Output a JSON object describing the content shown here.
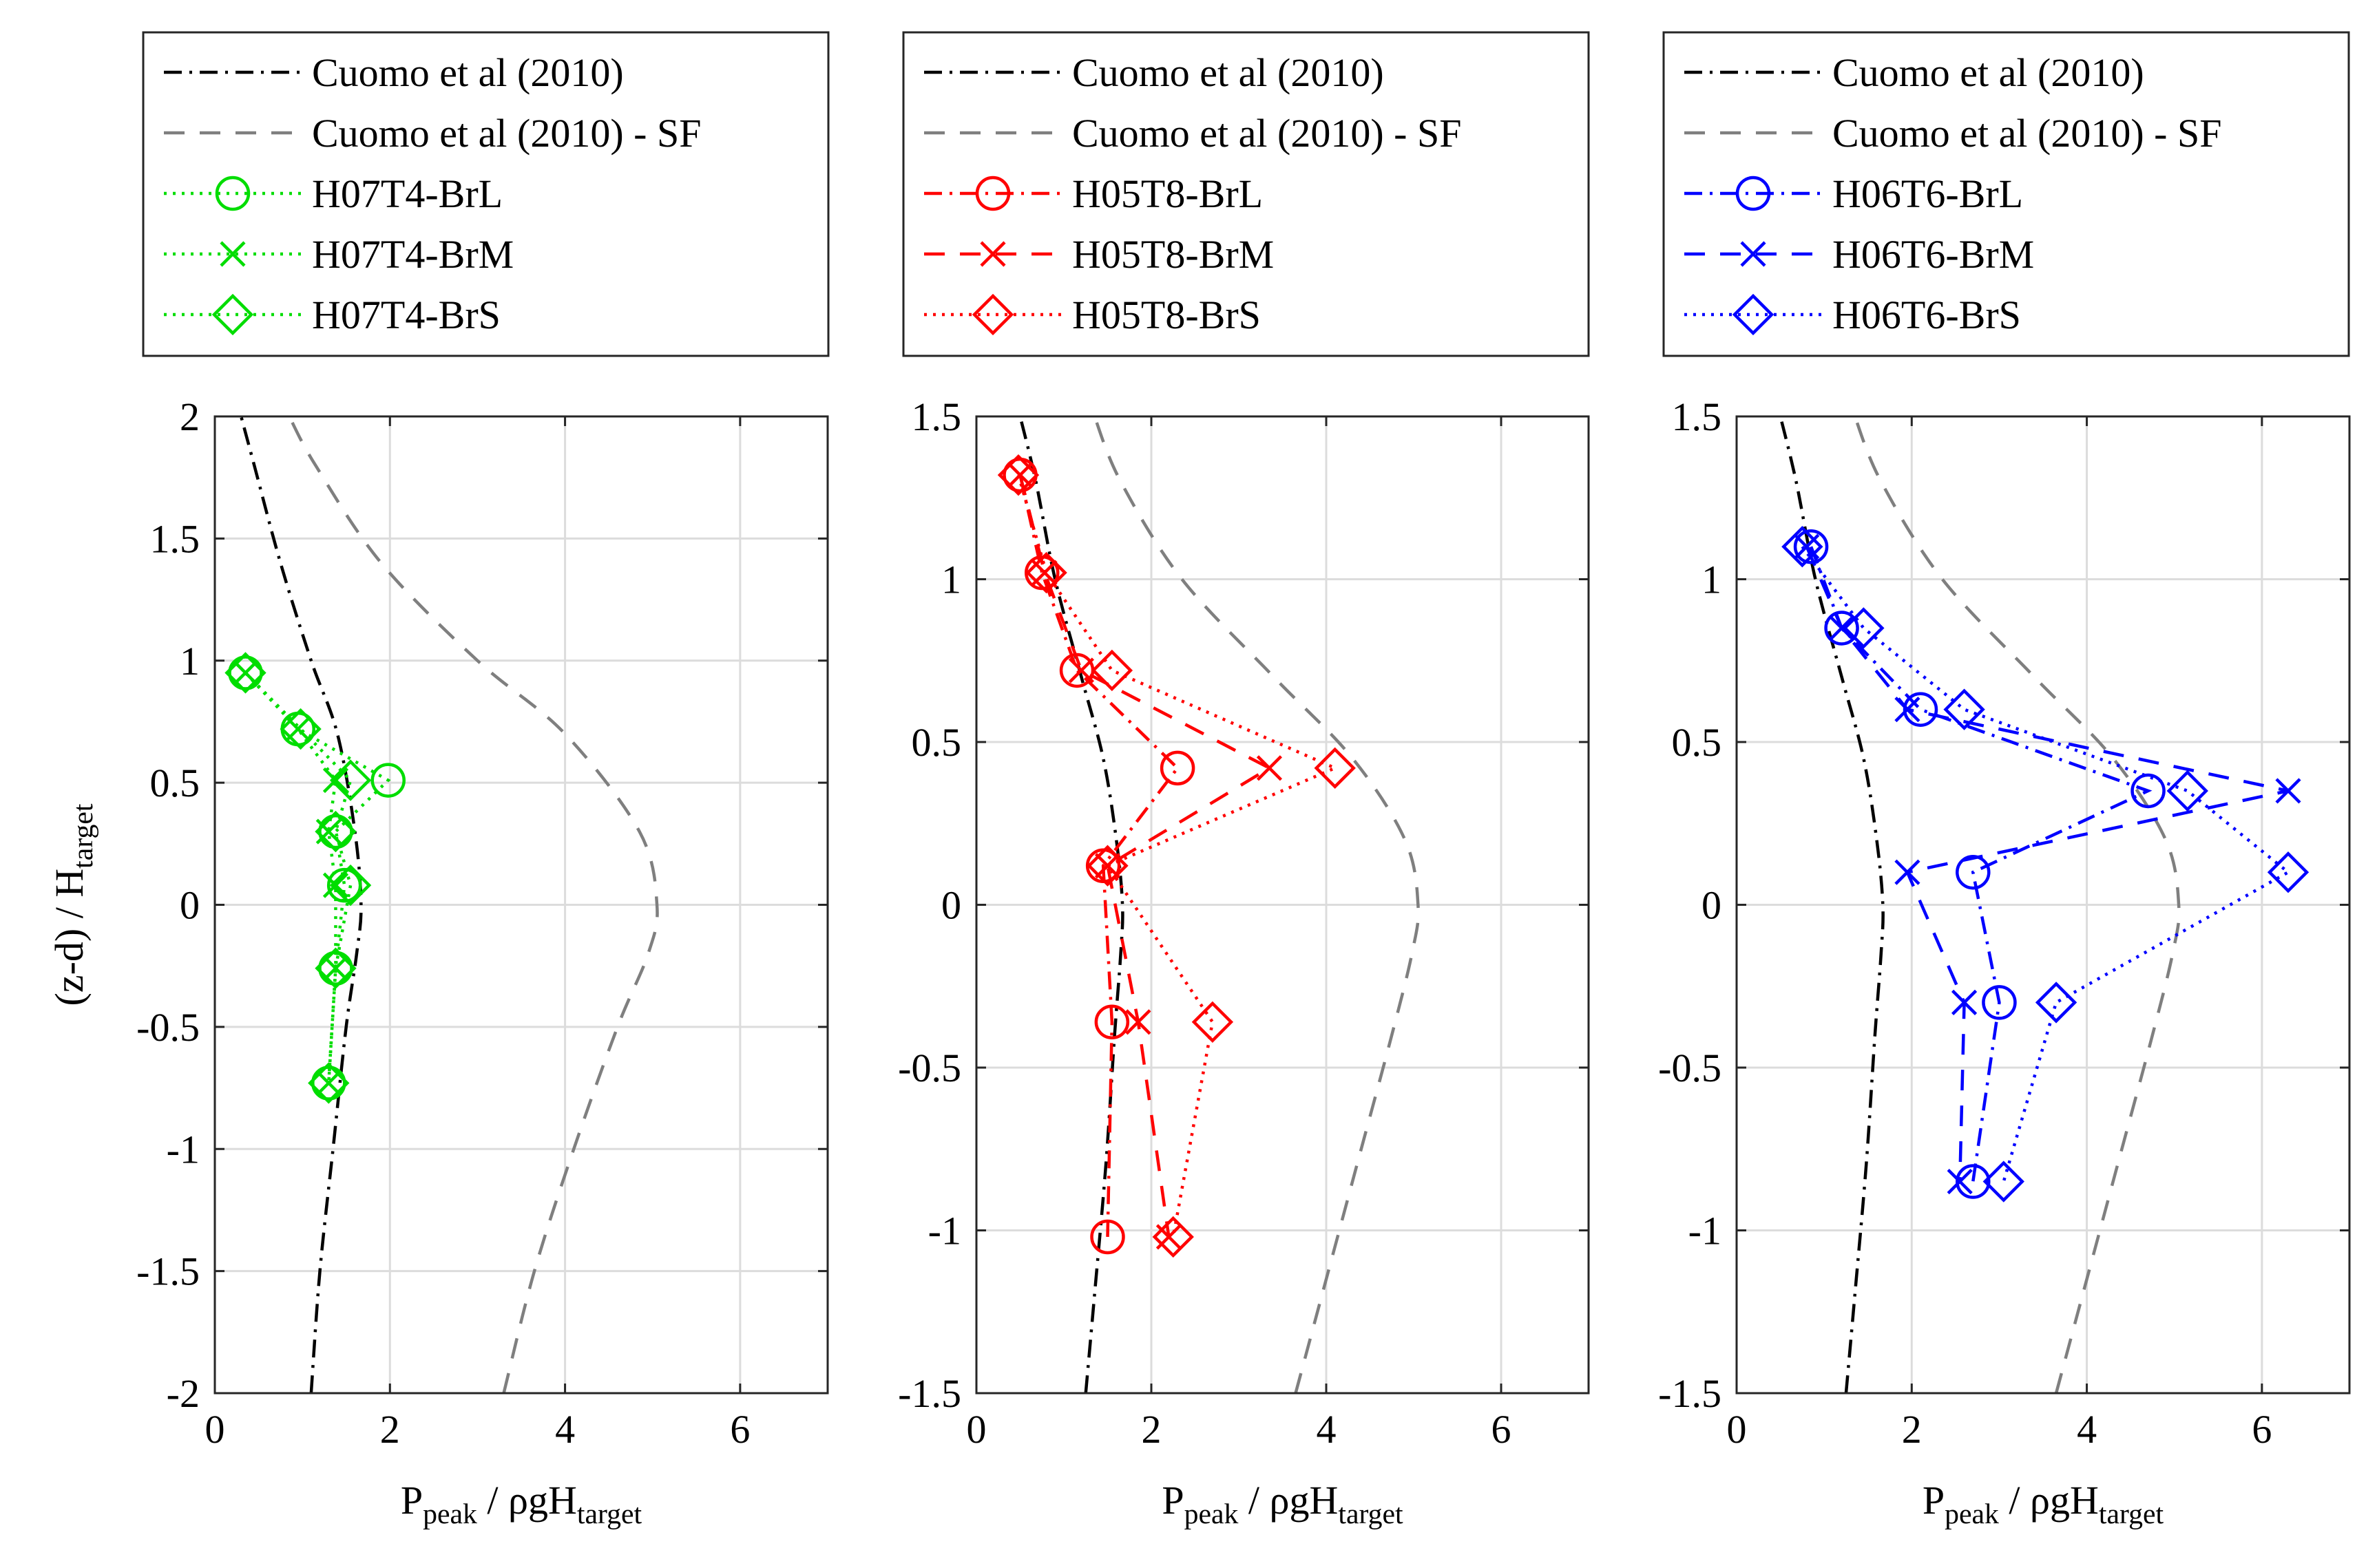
{
  "chart_data": [
    {
      "type": "line",
      "xlabel": "P_peak / ρgH_target",
      "ylabel": "(z-d) / H_target",
      "xlim": [
        0,
        7
      ],
      "ylim": [
        -2,
        2
      ],
      "xticks": [
        0,
        2,
        4,
        6
      ],
      "yticks": [
        -2,
        -1.5,
        -1,
        -0.5,
        0,
        0.5,
        1,
        1.5,
        2
      ],
      "xtick_labels": [
        "0",
        "2",
        "4",
        "6"
      ],
      "ytick_labels": [
        "-2",
        "-1.5",
        "-1",
        "-0.5",
        "0",
        "0.5",
        "1",
        "1.5",
        "2"
      ],
      "grid": true,
      "legend_placement": "above plot",
      "series": [
        {
          "name": "Cuomo et al (2010)",
          "color": "#000000",
          "dash": "dashdot",
          "marker": "none",
          "x": [
            1.1,
            1.2,
            1.35,
            1.5,
            1.62,
            1.67,
            1.6,
            1.4,
            1.1,
            0.75,
            0.45,
            0.3
          ],
          "y": [
            -2,
            -1.5,
            -1,
            -0.5,
            -0.2,
            0,
            0.3,
            0.7,
            1.0,
            1.4,
            1.8,
            2
          ]
        },
        {
          "name": "Cuomo et al (2010) - SF",
          "color": "#7f7f7f",
          "dash": "dashed",
          "marker": "none",
          "x": [
            3.3,
            3.65,
            4.1,
            4.6,
            4.95,
            5.05,
            4.85,
            4.0,
            3.0,
            1.9,
            1.15,
            0.85
          ],
          "y": [
            -2,
            -1.5,
            -1,
            -0.5,
            -0.2,
            0,
            0.3,
            0.7,
            1.0,
            1.4,
            1.8,
            2
          ]
        },
        {
          "name": "H07T4-BrL",
          "color": "#00dd00",
          "dash": "dotted",
          "marker": "circle",
          "x": [
            0.35,
            0.95,
            1.98,
            1.38,
            1.48,
            1.38,
            1.3
          ],
          "y": [
            0.95,
            0.72,
            0.51,
            0.3,
            0.08,
            -0.26,
            -0.73
          ]
        },
        {
          "name": "H07T4-BrM",
          "color": "#00dd00",
          "dash": "dotted",
          "marker": "x",
          "x": [
            0.35,
            0.95,
            1.38,
            1.3,
            1.38,
            1.38,
            1.3
          ],
          "y": [
            0.95,
            0.72,
            0.51,
            0.3,
            0.08,
            -0.26,
            -0.73
          ]
        },
        {
          "name": "H07T4-BrS",
          "color": "#00dd00",
          "dash": "dotted",
          "marker": "diamond",
          "x": [
            0.35,
            0.98,
            1.55,
            1.38,
            1.55,
            1.38,
            1.3
          ],
          "y": [
            0.95,
            0.72,
            0.51,
            0.3,
            0.08,
            -0.26,
            -0.73
          ]
        }
      ]
    },
    {
      "type": "line",
      "xlabel": "P_peak / ρgH_target",
      "ylabel": "",
      "xlim": [
        0,
        7
      ],
      "ylim": [
        -1.5,
        1.5
      ],
      "xticks": [
        0,
        2,
        4,
        6
      ],
      "yticks": [
        -1.5,
        -1,
        -0.5,
        0,
        0.5,
        1,
        1.5
      ],
      "xtick_labels": [
        "0",
        "2",
        "4",
        "6"
      ],
      "ytick_labels": [
        "-1.5",
        "-1",
        "-0.5",
        "0",
        "0.5",
        "1",
        "1.5"
      ],
      "grid": true,
      "legend_placement": "above plot",
      "series": [
        {
          "name": "Cuomo et al (2010)",
          "color": "#000000",
          "dash": "dashdot",
          "marker": "none",
          "x": [
            1.25,
            1.35,
            1.48,
            1.58,
            1.65,
            1.67,
            1.6,
            1.45,
            1.2,
            0.9,
            0.68,
            0.5
          ],
          "y": [
            -1.5,
            -1.2,
            -0.8,
            -0.4,
            -0.15,
            0,
            0.2,
            0.45,
            0.7,
            1.0,
            1.3,
            1.5
          ]
        },
        {
          "name": "Cuomo et al (2010) - SF",
          "color": "#7f7f7f",
          "dash": "dashed",
          "marker": "none",
          "x": [
            3.65,
            3.95,
            4.35,
            4.75,
            4.98,
            5.05,
            4.9,
            4.3,
            3.4,
            2.35,
            1.65,
            1.35
          ],
          "y": [
            -1.5,
            -1.2,
            -0.8,
            -0.4,
            -0.15,
            0,
            0.2,
            0.45,
            0.7,
            1.0,
            1.3,
            1.5
          ]
        },
        {
          "name": "H05T8-BrL",
          "color": "#ff0000",
          "dash": "dashdot",
          "marker": "circle",
          "x": [
            0.5,
            0.75,
            1.15,
            2.3,
            1.45,
            1.55,
            1.5
          ],
          "y": [
            1.32,
            1.02,
            0.72,
            0.42,
            0.12,
            -0.36,
            -1.02
          ]
        },
        {
          "name": "H05T8-BrM",
          "color": "#ff0000",
          "dash": "dashed",
          "marker": "x",
          "x": [
            0.5,
            0.78,
            1.2,
            3.35,
            1.5,
            1.85,
            2.2
          ],
          "y": [
            1.32,
            1.02,
            0.72,
            0.42,
            0.12,
            -0.36,
            -1.02
          ]
        },
        {
          "name": "H05T8-BrS",
          "color": "#ff0000",
          "dash": "dotted",
          "marker": "diamond",
          "x": [
            0.48,
            0.8,
            1.55,
            4.1,
            1.5,
            2.7,
            2.25
          ],
          "y": [
            1.32,
            1.02,
            0.72,
            0.42,
            0.12,
            -0.36,
            -1.02
          ]
        }
      ]
    },
    {
      "type": "line",
      "xlabel": "P_peak / ρgH_target",
      "ylabel": "",
      "xlim": [
        0,
        7
      ],
      "ylim": [
        -1.5,
        1.5
      ],
      "xticks": [
        0,
        2,
        4,
        6
      ],
      "yticks": [
        -1.5,
        -1,
        -0.5,
        0,
        0.5,
        1,
        1.5
      ],
      "xtick_labels": [
        "0",
        "2",
        "4",
        "6"
      ],
      "ytick_labels": [
        "-1.5",
        "-1",
        "-0.5",
        "0",
        "0.5",
        "1",
        "1.5"
      ],
      "grid": true,
      "legend_placement": "above plot",
      "series": [
        {
          "name": "Cuomo et al (2010)",
          "color": "#000000",
          "dash": "dashdot",
          "marker": "none",
          "x": [
            1.25,
            1.35,
            1.48,
            1.58,
            1.65,
            1.67,
            1.6,
            1.45,
            1.2,
            0.9,
            0.68,
            0.5
          ],
          "y": [
            -1.5,
            -1.2,
            -0.8,
            -0.4,
            -0.15,
            0,
            0.2,
            0.45,
            0.7,
            1.0,
            1.3,
            1.5
          ]
        },
        {
          "name": "Cuomo et al (2010) - SF",
          "color": "#7f7f7f",
          "dash": "dashed",
          "marker": "none",
          "x": [
            3.65,
            3.95,
            4.35,
            4.75,
            4.98,
            5.05,
            4.9,
            4.3,
            3.4,
            2.35,
            1.65,
            1.35
          ],
          "y": [
            -1.5,
            -1.2,
            -0.8,
            -0.4,
            -0.15,
            0,
            0.2,
            0.45,
            0.7,
            1.0,
            1.3,
            1.5
          ]
        },
        {
          "name": "H06T6-BrL",
          "color": "#0000ff",
          "dash": "dashdot",
          "marker": "circle",
          "x": [
            0.85,
            1.2,
            2.1,
            4.7,
            2.7,
            3.0,
            2.7
          ],
          "y": [
            1.1,
            0.85,
            0.6,
            0.35,
            0.1,
            -0.3,
            -0.85
          ]
        },
        {
          "name": "H06T6-BrM",
          "color": "#0000ff",
          "dash": "dashed",
          "marker": "x",
          "x": [
            0.8,
            1.2,
            1.95,
            6.3,
            1.95,
            2.6,
            2.55
          ],
          "y": [
            1.1,
            0.85,
            0.6,
            0.35,
            0.1,
            -0.3,
            -0.85
          ]
        },
        {
          "name": "H06T6-BrS",
          "color": "#0000ff",
          "dash": "dotted",
          "marker": "diamond",
          "x": [
            0.75,
            1.45,
            2.6,
            5.15,
            6.3,
            3.65,
            3.05
          ],
          "y": [
            1.1,
            0.85,
            0.6,
            0.35,
            0.1,
            -0.3,
            -0.85
          ]
        }
      ]
    }
  ]
}
